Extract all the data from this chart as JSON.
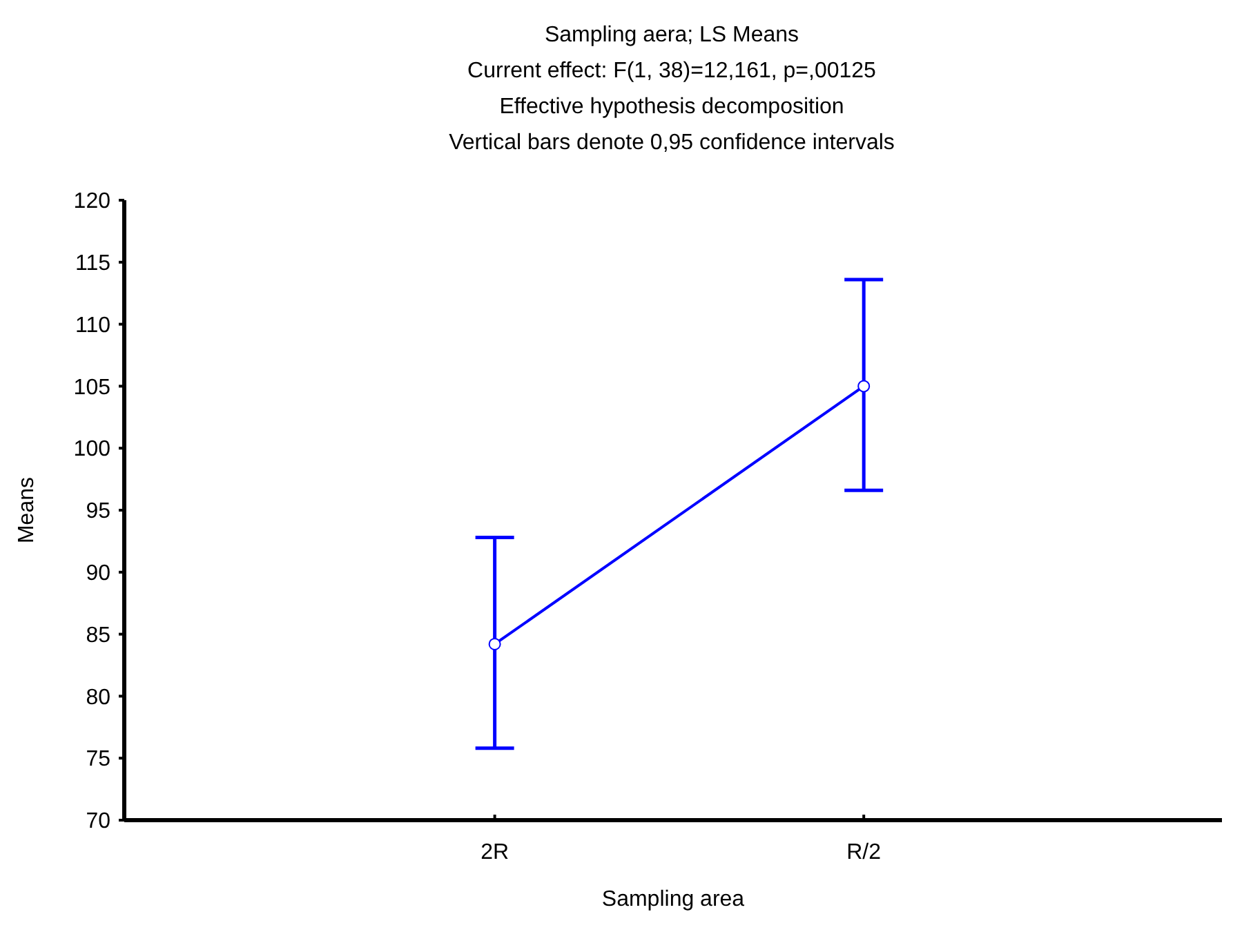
{
  "chart_data": {
    "type": "line",
    "title": "Sampling aera; LS Means",
    "subtitle": "Current effect: F(1, 38)=12,161, p=,00125",
    "annotations": [
      "Effective hypothesis decomposition",
      "Vertical bars denote 0,95 confidence intervals"
    ],
    "xlabel": "Sampling area",
    "ylabel": "Means",
    "categories": [
      "2R",
      "R/2"
    ],
    "series": [
      {
        "color": "#0000ff",
        "values": [
          84.2,
          105.0
        ],
        "errors": [
          [
            75.8,
            92.8
          ],
          [
            96.6,
            113.6
          ]
        ]
      }
    ],
    "ylim": [
      70,
      120
    ],
    "yticks": [
      70,
      75,
      80,
      85,
      90,
      95,
      100,
      105,
      110,
      115,
      120
    ],
    "marker": "circle",
    "line_style": "solid"
  }
}
